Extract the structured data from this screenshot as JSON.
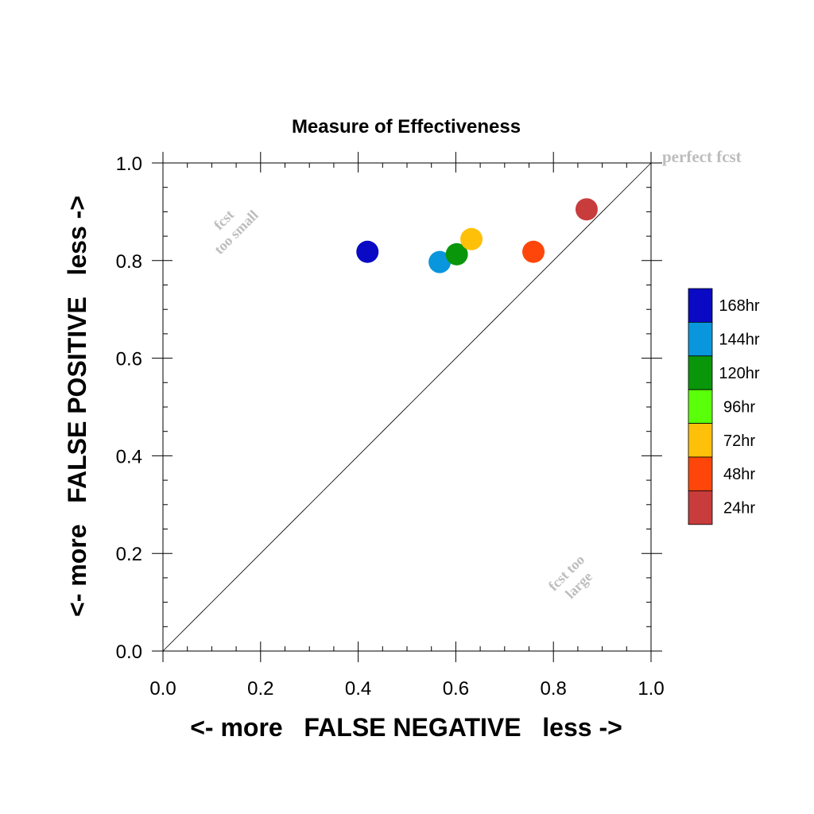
{
  "chart_data": {
    "type": "scatter",
    "title": "Measure of Effectiveness",
    "xlabel": "<- more   FALSE NEGATIVE   less ->",
    "ylabel": "<- more   FALSE POSITIVE   less ->",
    "xlim": [
      0.0,
      1.0
    ],
    "ylim": [
      0.0,
      1.0
    ],
    "xticks": [
      "0.0",
      "0.2",
      "0.4",
      "0.6",
      "0.8",
      "1.0"
    ],
    "yticks": [
      "0.0",
      "0.2",
      "0.4",
      "0.6",
      "0.8",
      "1.0"
    ],
    "grid": false,
    "legend_placement": "right",
    "reference_line": "diagonal",
    "annotations": {
      "perfect": "perfect fcst",
      "too_small": [
        "fcst",
        "too small"
      ],
      "too_large": [
        "fcst too",
        "large"
      ]
    },
    "series": [
      {
        "name": "168hr",
        "color": "#0a0ac4",
        "x": 0.419,
        "y": 0.818
      },
      {
        "name": "144hr",
        "color": "#0a96dc",
        "x": 0.567,
        "y": 0.797
      },
      {
        "name": "120hr",
        "color": "#0a960a",
        "x": 0.602,
        "y": 0.813
      },
      {
        "name": "96hr",
        "color": "#5aff0a",
        "x": null,
        "y": null
      },
      {
        "name": "72hr",
        "color": "#ffc00a",
        "x": 0.632,
        "y": 0.844
      },
      {
        "name": "48hr",
        "color": "#ff460a",
        "x": 0.759,
        "y": 0.818
      },
      {
        "name": "24hr",
        "color": "#c83c3c",
        "x": 0.868,
        "y": 0.905
      }
    ]
  }
}
